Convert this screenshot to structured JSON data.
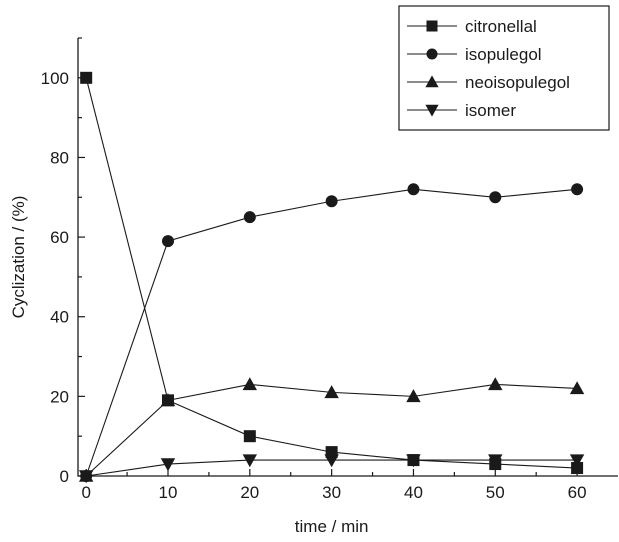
{
  "chart_data": {
    "type": "line",
    "xlabel": "time / min",
    "ylabel": "Cyclization / (%)",
    "xlim": [
      -1,
      65
    ],
    "ylim": [
      0,
      110
    ],
    "xticks": [
      0,
      10,
      20,
      30,
      40,
      50,
      60
    ],
    "yticks": [
      0,
      20,
      40,
      60,
      80,
      100
    ],
    "x_minor_step": 5,
    "y_minor_step": 10,
    "grid": false,
    "legend_position": "top-right",
    "series": [
      {
        "name": "citronellal",
        "marker": "square",
        "x": [
          0,
          10,
          20,
          30,
          40,
          50,
          60
        ],
        "y": [
          100,
          19,
          10,
          6,
          4,
          3,
          2
        ]
      },
      {
        "name": "isopulegol",
        "marker": "circle",
        "x": [
          0,
          10,
          20,
          30,
          40,
          50,
          60
        ],
        "y": [
          0,
          59,
          65,
          69,
          72,
          70,
          72
        ]
      },
      {
        "name": "neoisopulegol",
        "marker": "triangle-up",
        "x": [
          0,
          10,
          20,
          30,
          40,
          50,
          60
        ],
        "y": [
          0,
          19,
          23,
          21,
          20,
          23,
          22
        ]
      },
      {
        "name": "isomer",
        "marker": "triangle-down",
        "x": [
          0,
          10,
          20,
          30,
          40,
          50,
          60
        ],
        "y": [
          0,
          3,
          4,
          4,
          4,
          4,
          4
        ]
      }
    ]
  }
}
